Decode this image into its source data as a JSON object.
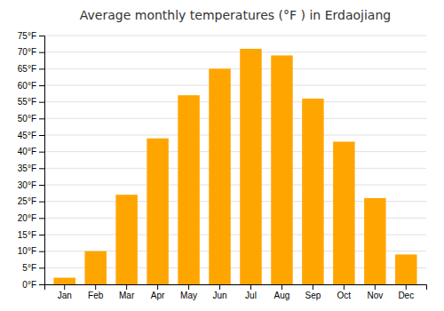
{
  "chart_data": {
    "type": "bar",
    "title": "Average monthly temperatures (°F ) in Erdaojiang",
    "categories": [
      "Jan",
      "Feb",
      "Mar",
      "Apr",
      "May",
      "Jun",
      "Jul",
      "Aug",
      "Sep",
      "Oct",
      "Nov",
      "Dec"
    ],
    "values": [
      2,
      10,
      27,
      44,
      57,
      65,
      71,
      69,
      56,
      43,
      26,
      9
    ],
    "color": "#FFA500",
    "ylim": [
      0,
      75
    ],
    "yticks": [
      {
        "value": 0,
        "label": "0°F"
      },
      {
        "value": 5,
        "label": "5°F"
      },
      {
        "value": 10,
        "label": "10°F"
      },
      {
        "value": 15,
        "label": "15°F"
      },
      {
        "value": 20,
        "label": "20°F"
      },
      {
        "value": 25,
        "label": "25°F"
      },
      {
        "value": 30,
        "label": "30°F"
      },
      {
        "value": 35,
        "label": "35°F"
      },
      {
        "value": 40,
        "label": "40°F"
      },
      {
        "value": 45,
        "label": "45°F"
      },
      {
        "value": 50,
        "label": "50°F"
      },
      {
        "value": 55,
        "label": "55°F"
      },
      {
        "value": 60,
        "label": "60°F"
      },
      {
        "value": 65,
        "label": "65°F"
      },
      {
        "value": 70,
        "label": "70°F"
      },
      {
        "value": 75,
        "label": "75°F"
      }
    ],
    "grid": true
  }
}
